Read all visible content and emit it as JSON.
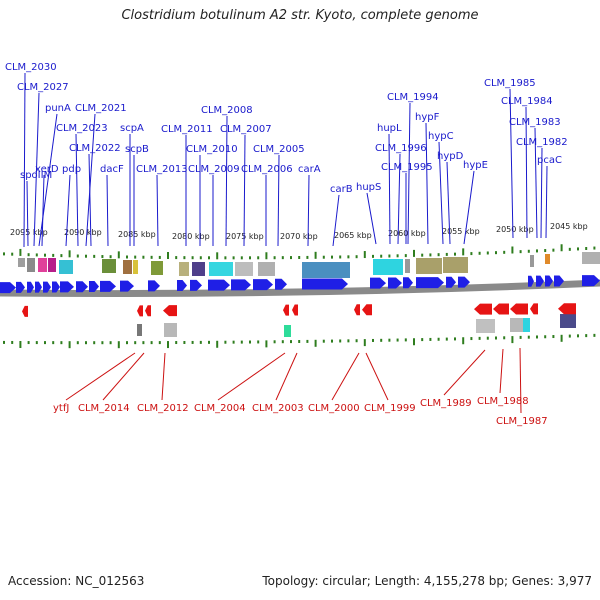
{
  "title": "Clostridium botulinum A2 str. Kyoto, complete genome",
  "footer": {
    "accession": "Accession: NC_012563",
    "summary": "Topology: circular; Length: 4,155,278 bp; Genes: 3,977"
  },
  "colors": {
    "forward_label": "#1a1acc",
    "reverse_label": "#cc1111",
    "forward_gene": "#1f1fe6",
    "reverse_gene": "#e61414",
    "tick": "#2e7d1e",
    "backbone": "#8a8a8a"
  },
  "genome": {
    "length_bp": 4155278,
    "visible_range_kbp": [
      2044,
      2097
    ],
    "scale_labels_kbp": [
      2095,
      2090,
      2085,
      2080,
      2075,
      2070,
      2065,
      2060,
      2055,
      2050,
      2045
    ]
  },
  "forward_labels": [
    "CLM_2030",
    "CLM_2027",
    "spoIIM",
    "punA",
    "xerD",
    "CLM_2021",
    "pdp",
    "CLM_2023",
    "CLM_2022",
    "dacF",
    "scpA",
    "scpB",
    "CLM_2013",
    "CLM_2011",
    "CLM_2008",
    "CLM_2010",
    "CLM_2009",
    "CLM_2007",
    "CLM_2006",
    "CLM_2005",
    "carA",
    "carB",
    "hupS",
    "CLM_1994",
    "hupL",
    "CLM_1996",
    "hypF",
    "CLM_1995",
    "hypC",
    "hypD",
    "hypE",
    "CLM_1985",
    "CLM_1984",
    "CLM_1983",
    "CLM_1982",
    "pcaC"
  ],
  "reverse_labels": [
    "ytfJ",
    "CLM_2014",
    "CLM_2012",
    "CLM_2004",
    "CLM_2003",
    "CLM_2000",
    "CLM_1999",
    "CLM_1989",
    "CLM_1988",
    "CLM_1987"
  ]
}
